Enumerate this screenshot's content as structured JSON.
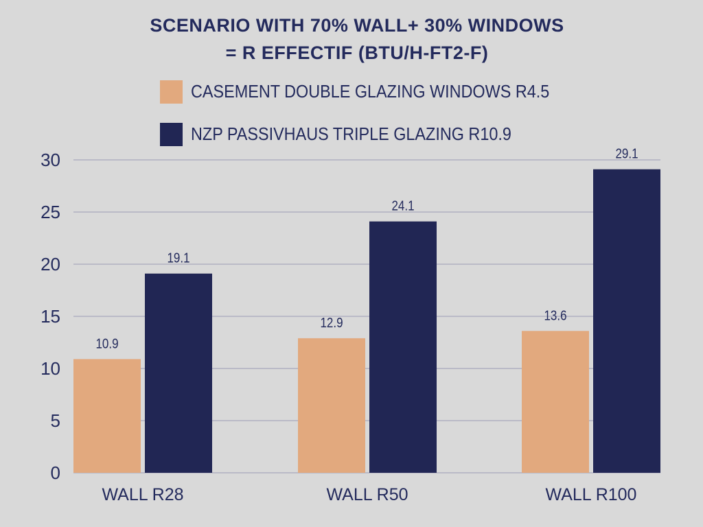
{
  "chart_data": {
    "type": "bar",
    "title_line1": "SCENARIO WITH 70% WALL+ 30% WINDOWS",
    "title_line2": "= R EFFECTIF (BTU/H-FT2-F)",
    "categories": [
      "WALL R28",
      "WALL R50",
      "WALL R100"
    ],
    "series": [
      {
        "name": "CASEMENT DOUBLE GLAZING WINDOWS R4.5",
        "color": "#e2a97e",
        "values": [
          10.9,
          12.9,
          13.6
        ],
        "labels": [
          "10.9",
          "12.9",
          "13.6"
        ]
      },
      {
        "name": "NZP PASSIVHAUS TRIPLE GLAZING R10.9",
        "color": "#212654",
        "values": [
          19.1,
          24.1,
          29.1
        ],
        "labels": [
          "19.1",
          "24.1",
          "29.1"
        ]
      }
    ],
    "ylim": [
      0,
      30
    ],
    "yticks": [
      "0",
      "5",
      "10",
      "15",
      "20",
      "25",
      "30"
    ],
    "grid": true,
    "legend": "top"
  }
}
